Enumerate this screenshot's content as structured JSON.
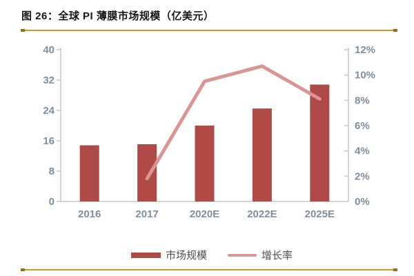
{
  "title": "图 26：全球 PI 薄膜市场规模（亿美元）",
  "colors": {
    "bar": "#b04a46",
    "line": "#d99694",
    "axis": "#c6c6c6",
    "tick_label": "#7e8e9e",
    "divider": "#d8922d",
    "divider_cap": "#a06a1e",
    "legend_text": "#4f4f4f",
    "title_color": "#161616"
  },
  "legend": [
    {
      "label": "市场规模",
      "type": "bar"
    },
    {
      "label": "增长率",
      "type": "line"
    }
  ],
  "chart_data": {
    "type": "bar",
    "subtype": "bar+line combo, dual axis",
    "title": "全球PI薄膜市场规模（亿美元）",
    "categories": [
      "2016",
      "2017",
      "2020E",
      "2022E",
      "2025E"
    ],
    "series": [
      {
        "name": "市场规模",
        "type": "bar",
        "axis": "left",
        "values": [
          14.8,
          15.1,
          20.0,
          24.5,
          30.8
        ]
      },
      {
        "name": "增长率",
        "type": "line",
        "axis": "right",
        "unit": "%",
        "values": [
          null,
          1.8,
          9.5,
          10.7,
          8.1
        ]
      }
    ],
    "left_axis": {
      "min": 0,
      "max": 40,
      "ticks": [
        0,
        8,
        16,
        24,
        32,
        40
      ]
    },
    "right_axis": {
      "min": 0,
      "max": 12,
      "tick_values": [
        0,
        2,
        4,
        6,
        8,
        10,
        12
      ],
      "tick_labels": [
        "0%",
        "2%",
        "4%",
        "6%",
        "8%",
        "10%",
        "12%"
      ]
    },
    "grid": false,
    "legend_position": "bottom"
  }
}
